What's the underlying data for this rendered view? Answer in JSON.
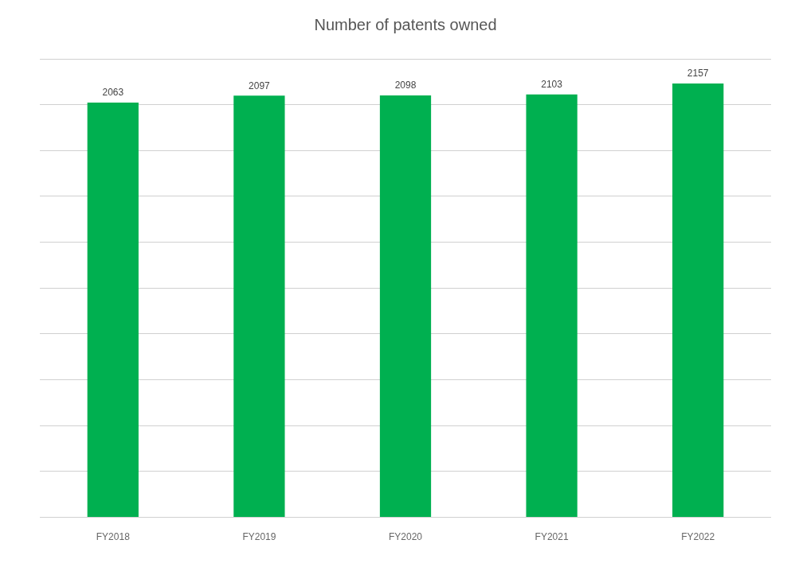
{
  "chart_data": {
    "type": "bar",
    "title": "Number of patents owned",
    "categories": [
      "FY2018",
      "FY2019",
      "FY2020",
      "FY2021",
      "FY2022"
    ],
    "values": [
      2063,
      2097,
      2098,
      2103,
      2157
    ],
    "color": "#00b050",
    "ylim": [
      0,
      2280
    ],
    "yticks": [
      0,
      228,
      456,
      684,
      912,
      1140,
      1368,
      1596,
      1824,
      2052,
      2280
    ],
    "grid": true,
    "data_labels": true,
    "tick_labels": "x"
  }
}
